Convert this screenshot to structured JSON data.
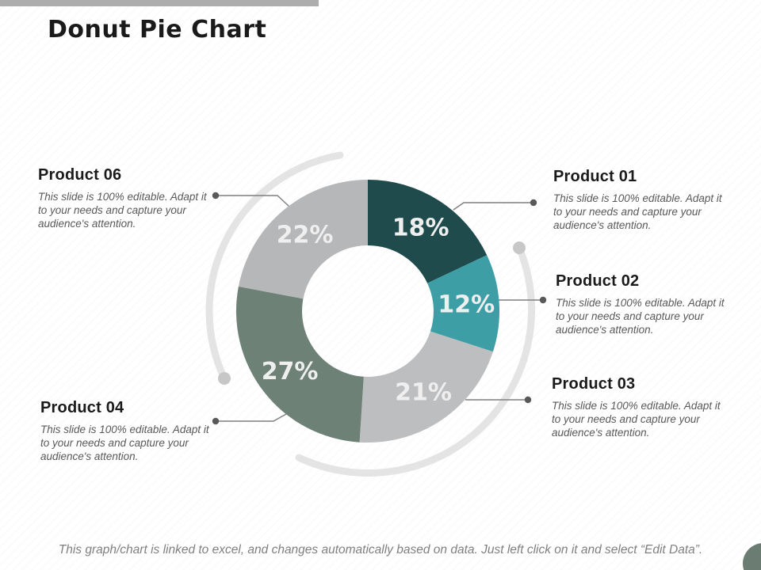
{
  "slide": {
    "title": "Donut Pie Chart",
    "footer": "This graph/chart is linked to excel, and changes automatically based on data. Just left click on it and select “Edit Data”."
  },
  "callouts": [
    {
      "id": "product-01",
      "label": "Product 01",
      "body": "This slide is 100% editable. Adapt it to your needs and capture your audience's attention.",
      "side": "right"
    },
    {
      "id": "product-02",
      "label": "Product 02",
      "body": "This slide is 100% editable. Adapt it to your needs and capture your audience's attention.",
      "side": "right"
    },
    {
      "id": "product-03",
      "label": "Product 03",
      "body": "This slide is 100% editable. Adapt it to your needs and capture your audience's attention.",
      "side": "right"
    },
    {
      "id": "product-04",
      "label": "Product 04",
      "body": "This slide is 100% editable. Adapt it to your needs and capture your audience's attention.",
      "side": "left"
    },
    {
      "id": "product-06",
      "label": "Product 06",
      "body": "This slide is 100% editable. Adapt it to your needs and capture your audience's attention.",
      "side": "left"
    }
  ],
  "chart_data": {
    "type": "pie",
    "subtype": "donut",
    "title": "Donut Pie Chart",
    "categories": [
      "Product 01",
      "Product 02",
      "Product 03",
      "Product 04",
      "Product 06"
    ],
    "values": [
      18,
      12,
      21,
      27,
      22
    ],
    "labels": [
      "18%",
      "12%",
      "21%",
      "27%",
      "22%"
    ],
    "unit": "percent",
    "start_angle_deg": 0,
    "direction": "clockwise",
    "inner_radius_ratio": 0.5,
    "slice_colors": [
      "#1f4b4d",
      "#3d9fa5",
      "#bdbebf",
      "#6e8177",
      "#b6b7b9"
    ],
    "label_color": "#efefef",
    "legend_position": "callouts-around-chart"
  },
  "palette": {
    "top_bar": "#adadad",
    "heading_text": "#1a1a1a",
    "body_text": "#595959",
    "footer_text": "#7f7f7f",
    "leader_line": "#7f7f7f",
    "leader_dot": "#595959",
    "decor_arc": "#e4e4e4",
    "decor_dot": "#c7c7c7",
    "corner_circle": "#6b7d73"
  }
}
